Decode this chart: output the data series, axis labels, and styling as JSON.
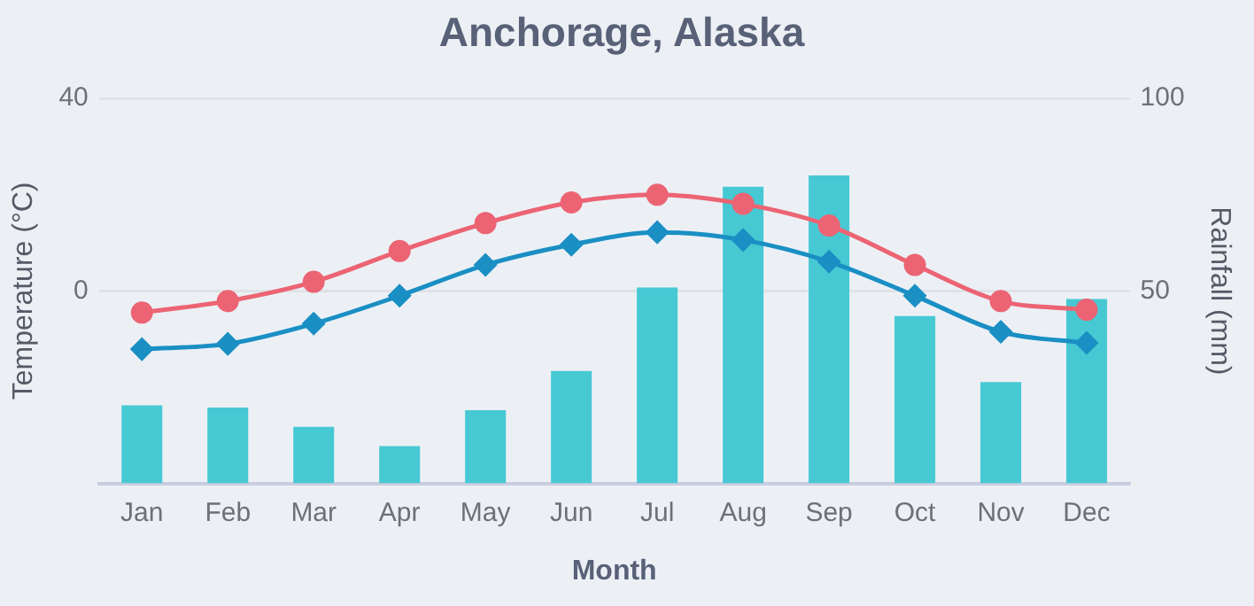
{
  "chart_data": {
    "type": "bar",
    "title": "Anchorage, Alaska",
    "xlabel": "Month",
    "ylabel": "Temperature (°C)",
    "y2label": "Rainfall (mm)",
    "categories": [
      "Jan",
      "Feb",
      "Mar",
      "Apr",
      "May",
      "Jun",
      "Jul",
      "Aug",
      "Sep",
      "Oct",
      "Nov",
      "Dec"
    ],
    "series": [
      {
        "type": "line",
        "color": "#ec6473",
        "marker": "circle",
        "values": [
          -4.5,
          -2.1,
          1.9,
          8.3,
          14.1,
          18.4,
          20.0,
          18.1,
          13.6,
          5.4,
          -2.1,
          -3.9
        ]
      },
      {
        "type": "line",
        "color": "#1a8fc4",
        "marker": "diamond",
        "values": [
          -12.1,
          -11.0,
          -6.8,
          -1.0,
          5.4,
          9.6,
          12.2,
          10.6,
          6.1,
          -1.0,
          -8.5,
          -10.8
        ]
      },
      {
        "axis": "y2",
        "color": "#47c9d4",
        "values": [
          20.3,
          19.7,
          14.7,
          9.7,
          19.0,
          29.2,
          50.9,
          77.1,
          80.0,
          43.5,
          26.3,
          47.9
        ]
      }
    ],
    "ylim": [
      -40,
      40
    ],
    "yticks": [
      {
        "value": -40,
        "label": null
      },
      0,
      40
    ],
    "y2lim": [
      0,
      100
    ],
    "y2ticks": [
      50,
      100
    ],
    "grid": "y",
    "legend": false
  }
}
